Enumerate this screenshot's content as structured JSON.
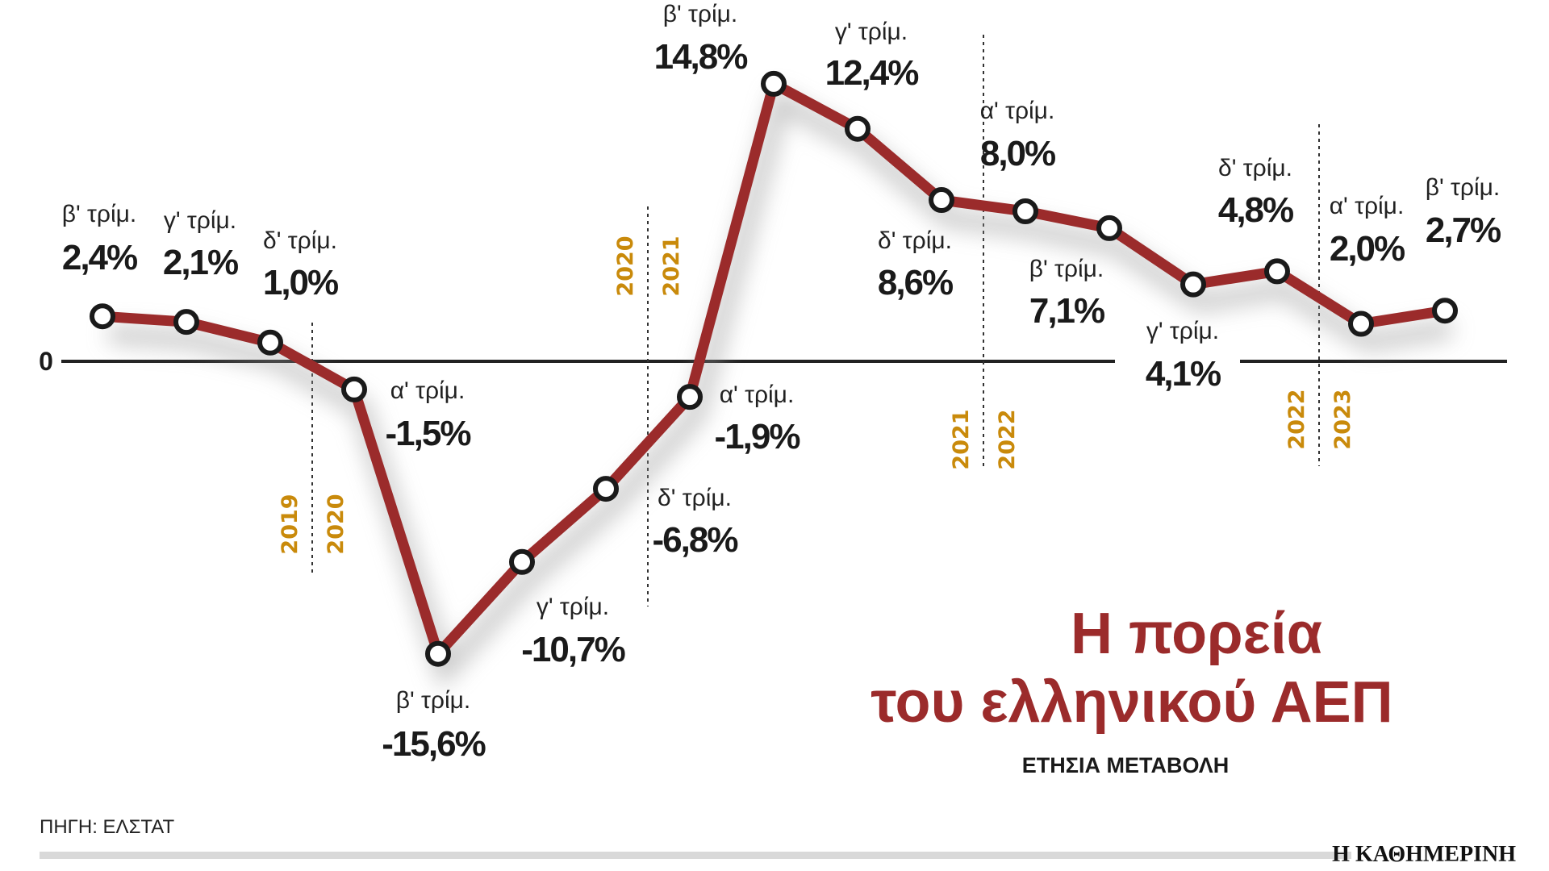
{
  "chart_data": {
    "type": "line",
    "title": "Η πορεία του ελληνικού ΑΕΠ",
    "title_lines": [
      "Η πορεία",
      "του ελληνικού ΑΕΠ"
    ],
    "subtitle": "ΕΤΗΣΙΑ ΜΕΤΑΒΟΛΗ",
    "zero_label": "0",
    "ylim": [
      -16,
      15
    ],
    "points": [
      {
        "quarter": "β' τρίμ.",
        "value": 2.4,
        "label": "2,4%"
      },
      {
        "quarter": "γ' τρίμ.",
        "value": 2.1,
        "label": "2,1%"
      },
      {
        "quarter": "δ' τρίμ.",
        "value": 1.0,
        "label": "1,0%"
      },
      {
        "quarter": "α' τρίμ.",
        "value": -1.5,
        "label": "-1,5%"
      },
      {
        "quarter": "β' τρίμ.",
        "value": -15.6,
        "label": "-15,6%"
      },
      {
        "quarter": "γ' τρίμ.",
        "value": -10.7,
        "label": "-10,7%"
      },
      {
        "quarter": "δ' τρίμ.",
        "value": -6.8,
        "label": "-6,8%"
      },
      {
        "quarter": "α' τρίμ.",
        "value": -1.9,
        "label": "-1,9%"
      },
      {
        "quarter": "β' τρίμ.",
        "value": 14.8,
        "label": "14,8%"
      },
      {
        "quarter": "γ' τρίμ.",
        "value": 12.4,
        "label": "12,4%"
      },
      {
        "quarter": "δ' τρίμ.",
        "value": 8.6,
        "label": "8,6%"
      },
      {
        "quarter": "α' τρίμ.",
        "value": 8.0,
        "label": "8,0%"
      },
      {
        "quarter": "β' τρίμ.",
        "value": 7.1,
        "label": "7,1%"
      },
      {
        "quarter": "γ' τρίμ.",
        "value": 4.1,
        "label": "4,1%"
      },
      {
        "quarter": "δ' τρίμ.",
        "value": 4.8,
        "label": "4,8%"
      },
      {
        "quarter": "α' τρίμ.",
        "value": 2.0,
        "label": "2,0%"
      },
      {
        "quarter": "β' τρίμ.",
        "value": 2.7,
        "label": "2,7%"
      }
    ],
    "year_dividers": [
      {
        "after_index": 2,
        "left": "2019",
        "right": "2020"
      },
      {
        "after_index": 6,
        "left": "2020",
        "right": "2021"
      },
      {
        "after_index": 10,
        "left": "2021",
        "right": "2022"
      },
      {
        "after_index": 14,
        "left": "2022",
        "right": "2023"
      }
    ],
    "colors": {
      "line": "#9B2B2B",
      "years": "#C98A0B",
      "title": "#9B2B2B"
    }
  },
  "footer": {
    "source": "ΠΗΓΗ: ΕΛΣΤΑΤ",
    "logo": "Η ΚΑΘΗΜΕΡΙΝΗ"
  }
}
